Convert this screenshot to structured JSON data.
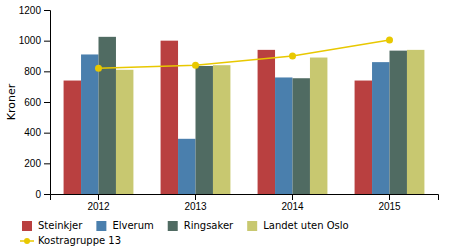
{
  "chart_data": {
    "type": "bar",
    "categories": [
      "2012",
      "2013",
      "2014",
      "2015"
    ],
    "ylabel": "Kroner",
    "series": [
      {
        "name": "Steinkjer",
        "color": "#b94040",
        "values": [
          740,
          1000,
          940,
          740
        ]
      },
      {
        "name": "Elverum",
        "color": "#4a7fad",
        "values": [
          910,
          360,
          760,
          860
        ]
      },
      {
        "name": "Ringsaker",
        "color": "#506b62",
        "values": [
          1025,
          835,
          755,
          935
        ]
      },
      {
        "name": "Landet uten Oslo",
        "color": "#c8c870",
        "values": [
          810,
          840,
          890,
          940
        ]
      },
      {
        "name": "Kostragruppe 13",
        "type": "line",
        "color": "#e8c800",
        "marker": "circle",
        "values": [
          820,
          840,
          900,
          1005
        ]
      }
    ],
    "ylim": [
      0,
      1200
    ],
    "yticks": [
      0,
      200,
      400,
      600,
      800,
      1000,
      1200
    ],
    "grid": false,
    "legend": "bottom"
  }
}
